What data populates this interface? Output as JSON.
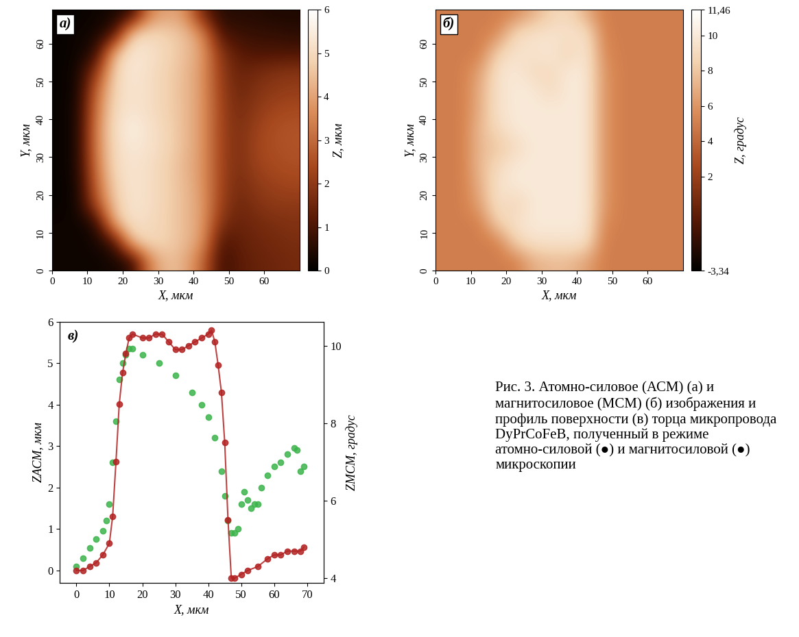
{
  "chart_data": [
    {
      "type": "heatmap",
      "label": "а)",
      "xlabel": "X, мкм",
      "ylabel": "Y, мкм",
      "xlim": [
        0,
        70
      ],
      "ylim": [
        0,
        69
      ],
      "xticks": [
        0,
        10,
        20,
        30,
        40,
        50,
        60
      ],
      "yticks": [
        0,
        10,
        20,
        30,
        40,
        50,
        60
      ],
      "x_edges": [
        0,
        5,
        10,
        15,
        20,
        25,
        30,
        35,
        40,
        45,
        50,
        55,
        60,
        65,
        70
      ],
      "y_edges": [
        0,
        5,
        10,
        15,
        20,
        25,
        30,
        35,
        40,
        45,
        50,
        55,
        60,
        65,
        70
      ],
      "cells": [
        [
          0.2,
          0.2,
          0.2,
          0.3,
          0.5,
          3.5,
          4.5,
          4.2,
          3.0,
          0.8,
          1.2,
          1.4,
          1.5,
          1.6
        ],
        [
          0.2,
          0.2,
          0.3,
          0.8,
          4.5,
          5.0,
          4.8,
          4.4,
          3.8,
          1.0,
          1.3,
          1.5,
          1.6,
          1.7
        ],
        [
          0.2,
          0.2,
          0.5,
          4.2,
          5.2,
          5.0,
          4.8,
          4.4,
          3.9,
          1.8,
          1.4,
          1.6,
          1.7,
          1.8
        ],
        [
          0.1,
          0.3,
          2.5,
          4.6,
          5.3,
          5.1,
          4.8,
          4.4,
          3.9,
          2.2,
          1.5,
          1.8,
          2.0,
          2.0
        ],
        [
          0.1,
          0.3,
          3.0,
          4.8,
          5.3,
          5.1,
          4.8,
          4.4,
          3.8,
          2.3,
          1.6,
          2.0,
          2.2,
          2.3
        ],
        [
          0.1,
          0.4,
          3.3,
          5.0,
          5.3,
          5.1,
          4.8,
          4.3,
          3.8,
          2.3,
          1.7,
          2.2,
          2.4,
          2.5
        ],
        [
          0.1,
          0.4,
          3.5,
          5.0,
          5.4,
          5.2,
          4.9,
          4.4,
          3.8,
          2.3,
          1.7,
          2.3,
          2.5,
          2.6
        ],
        [
          0.1,
          0.4,
          3.5,
          5.1,
          5.6,
          5.2,
          4.9,
          4.4,
          3.8,
          2.3,
          1.7,
          2.2,
          2.5,
          2.6
        ],
        [
          0.1,
          0.4,
          3.3,
          5.0,
          5.3,
          5.1,
          4.8,
          4.4,
          3.8,
          2.3,
          1.6,
          2.0,
          2.3,
          2.4
        ],
        [
          0.1,
          0.3,
          3.0,
          4.9,
          5.3,
          5.1,
          4.8,
          4.4,
          3.8,
          2.2,
          1.5,
          1.8,
          2.0,
          2.1
        ],
        [
          0.1,
          0.3,
          2.0,
          4.8,
          5.4,
          5.1,
          4.8,
          4.4,
          3.8,
          2.1,
          1.4,
          1.6,
          1.8,
          1.9
        ],
        [
          0.1,
          0.2,
          0.6,
          4.3,
          5.4,
          5.2,
          4.9,
          4.5,
          3.9,
          1.9,
          1.2,
          1.0,
          1.0,
          1.0
        ],
        [
          0.1,
          0.2,
          0.3,
          0.8,
          4.8,
          5.0,
          4.8,
          4.5,
          3.6,
          1.0,
          0.8,
          0.7,
          0.7,
          0.6
        ],
        [
          0.1,
          0.1,
          0.2,
          0.3,
          0.6,
          3.5,
          4.0,
          3.8,
          1.5,
          0.5,
          0.5,
          0.5,
          0.4,
          0.4
        ]
      ],
      "color_range": [
        0,
        6
      ],
      "color_ticks": [
        0,
        1,
        2,
        3,
        4,
        5,
        6
      ],
      "color_label": "Z, мкм"
    },
    {
      "type": "heatmap",
      "label": "б)",
      "xlabel": "X, мкм",
      "ylabel": "Y, мкм",
      "xlim": [
        0,
        70
      ],
      "ylim": [
        0,
        69
      ],
      "xticks": [
        0,
        10,
        20,
        30,
        40,
        50,
        60
      ],
      "yticks": [
        0,
        10,
        20,
        30,
        40,
        50,
        60
      ],
      "x_edges": [
        0,
        5,
        10,
        15,
        20,
        25,
        30,
        35,
        40,
        45,
        50,
        55,
        60,
        65,
        70
      ],
      "y_edges": [
        0,
        5,
        10,
        15,
        20,
        25,
        30,
        35,
        40,
        45,
        50,
        55,
        60,
        65,
        70
      ],
      "cells": [
        [
          5,
          5,
          5,
          5,
          5,
          7,
          7.5,
          7.5,
          6.5,
          5,
          5,
          5,
          5,
          5
        ],
        [
          5,
          5,
          5,
          5,
          8.5,
          9.5,
          9.5,
          9.5,
          9.5,
          5,
          5,
          5,
          5,
          5
        ],
        [
          5,
          5,
          5,
          8.5,
          9.5,
          10,
          10,
          10,
          10,
          5.5,
          5,
          5,
          5,
          5
        ],
        [
          5,
          5,
          6.5,
          9.5,
          8.5,
          10,
          10,
          10,
          10,
          6,
          5,
          5,
          5,
          5
        ],
        [
          5,
          5,
          7,
          9.5,
          10,
          10,
          10,
          10,
          10,
          6,
          5,
          5,
          5,
          5
        ],
        [
          5,
          5,
          7.5,
          9,
          10,
          10,
          10,
          10,
          10,
          6,
          5,
          5,
          5,
          5
        ],
        [
          5,
          5,
          7.5,
          8,
          9,
          10,
          10,
          10,
          10,
          6,
          5,
          5,
          5,
          5
        ],
        [
          5,
          5,
          7.5,
          9,
          10,
          10,
          10,
          10,
          10,
          6,
          5,
          5,
          5,
          5
        ],
        [
          5,
          5,
          7,
          9.5,
          10,
          10,
          10,
          10,
          10,
          6,
          5,
          5,
          5,
          5
        ],
        [
          5,
          5,
          7,
          9.5,
          10,
          10,
          9,
          10,
          10,
          6,
          5,
          5,
          5,
          5
        ],
        [
          5,
          5,
          6.5,
          9.5,
          10,
          9,
          9,
          10,
          10,
          6,
          5,
          5,
          5,
          5
        ],
        [
          5,
          5,
          5,
          8.5,
          9.5,
          9.5,
          10,
          8.5,
          10,
          5.5,
          5,
          5,
          5,
          5
        ],
        [
          5,
          5,
          5,
          5.5,
          9,
          9.5,
          9.5,
          9.5,
          9.5,
          5.2,
          5,
          5,
          5,
          5
        ],
        [
          5,
          5,
          5,
          5,
          5.5,
          7,
          8.5,
          9,
          7,
          5,
          5,
          5,
          5,
          5
        ]
      ],
      "color_range": [
        -3.34,
        11.46
      ],
      "color_ticks": [
        {
          "value": -3.34,
          "label": "-3,34"
        },
        2,
        4,
        6,
        8,
        10,
        {
          "value": 11.46,
          "label": "11,46"
        }
      ],
      "color_label": "Z, градус"
    },
    {
      "type": "line",
      "label": "в)",
      "xlabel": "X, мкм",
      "ylabel": "ZАСМ, мкм",
      "y2label": "ZМСМ, градус",
      "xlim": [
        -5,
        75
      ],
      "xticks": [
        0,
        10,
        20,
        30,
        40,
        50,
        60,
        70
      ],
      "ylim": [
        -0.3,
        6
      ],
      "yticks": [
        0,
        1,
        2,
        3,
        4,
        5,
        6
      ],
      "y2lim": [
        3.88,
        10.62
      ],
      "y2ticks": [
        4,
        6,
        8,
        10
      ],
      "series": [
        {
          "color": "#3cb44b",
          "marker": "circle",
          "line_style": "none",
          "x": [
            0,
            2,
            4,
            6,
            8,
            9,
            10,
            11,
            12,
            13,
            14,
            15,
            16,
            17,
            20,
            25,
            30,
            35,
            38,
            40,
            42,
            44,
            45,
            46,
            47,
            48,
            49,
            50,
            51,
            52,
            53,
            54,
            55,
            56,
            58,
            60,
            62,
            64,
            66,
            67,
            68,
            69
          ],
          "values": [
            0.1,
            0.3,
            0.55,
            0.75,
            0.95,
            1.2,
            1.6,
            2.6,
            3.6,
            4.6,
            5.0,
            5.2,
            5.35,
            5.35,
            5.2,
            5.0,
            4.7,
            4.3,
            4.0,
            3.7,
            3.2,
            2.4,
            1.8,
            1.2,
            0.9,
            0.9,
            1.0,
            1.6,
            1.9,
            1.7,
            1.5,
            1.6,
            1.6,
            2.0,
            2.3,
            2.5,
            2.6,
            2.8,
            2.95,
            2.9,
            2.4,
            2.5
          ]
        },
        {
          "color": "#b22222",
          "marker": "circle",
          "line_style": "solid",
          "axis": "y2",
          "x": [
            0,
            2,
            4,
            6,
            8,
            10,
            11,
            12,
            13,
            14,
            15,
            16,
            17,
            20,
            22,
            24,
            26,
            28,
            30,
            32,
            34,
            36,
            38,
            40,
            41,
            42,
            43,
            44,
            45,
            46,
            47,
            48,
            50,
            52,
            55,
            58,
            60,
            62,
            64,
            66,
            68,
            69
          ],
          "values": [
            4.2,
            4.2,
            4.3,
            4.4,
            4.6,
            4.9,
            5.6,
            7.0,
            8.5,
            9.3,
            9.8,
            10.2,
            10.3,
            10.2,
            10.2,
            10.3,
            10.3,
            10.1,
            9.9,
            9.9,
            10.0,
            10.1,
            10.2,
            10.3,
            10.4,
            10.1,
            9.5,
            8.8,
            7.5,
            5.5,
            4.0,
            4.0,
            4.1,
            4.2,
            4.3,
            4.5,
            4.6,
            4.6,
            4.7,
            4.7,
            4.7,
            4.8
          ]
        }
      ]
    }
  ],
  "caption": "Рис. 3. Атомно-силовое (АСМ) (а) и магнитосиловое (МСМ) (б) изображения и профиль поверхности (в) торца микропровода DyPrCoFeB, полученный в режиме атомно-силовой (●) и магнитосиловой (●) микроскопии"
}
